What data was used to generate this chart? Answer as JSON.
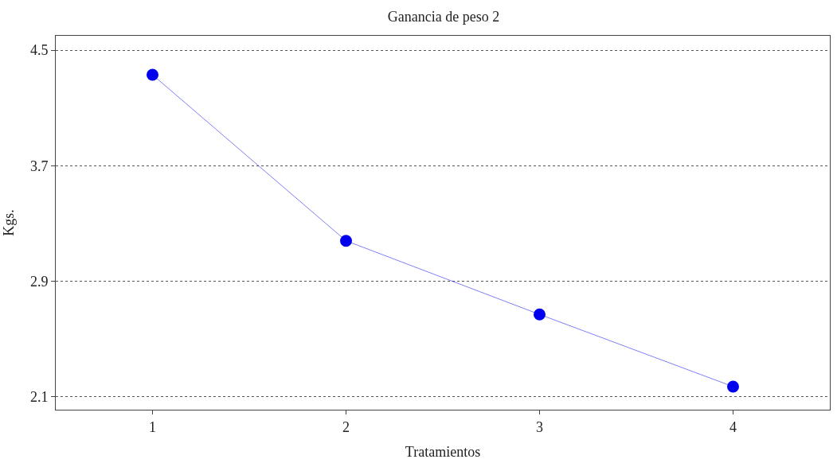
{
  "chart_data": {
    "type": "line",
    "title": "Ganancia de peso 2",
    "xlabel": "Tratamientos",
    "ylabel": "Kgs.",
    "x": [
      1,
      2,
      3,
      4
    ],
    "series": [
      {
        "color": "#0000ee",
        "values": [
          4.33,
          3.18,
          2.67,
          2.17
        ]
      }
    ],
    "xlim": [
      0.5,
      4.5
    ],
    "xticks": [
      1,
      2,
      3,
      4
    ],
    "ylim": [
      2.01,
      4.6
    ],
    "yticks": [
      2.1,
      2.9,
      3.7,
      4.5
    ],
    "grid": "y",
    "marker": "circle",
    "line_style": "solid"
  }
}
